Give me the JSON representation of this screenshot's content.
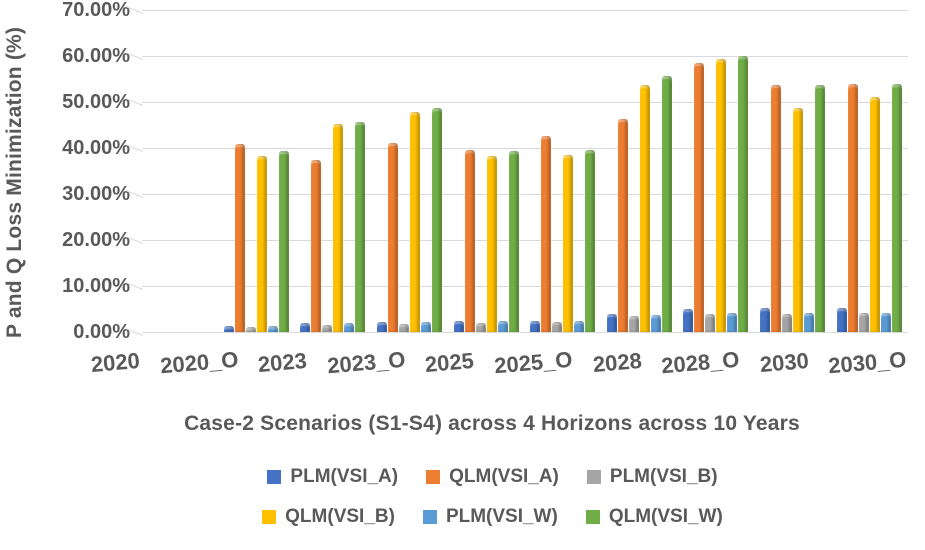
{
  "chart_data": {
    "type": "bar",
    "title": "",
    "xlabel": "Case-2 Scenarios (S1-S4) across 4 Horizons across 10 Years",
    "ylabel": "P and Q Loss Minimization (%)",
    "ylim": [
      0,
      70
    ],
    "grid": true,
    "legend_position": "bottom",
    "yticks": [
      "70.00%",
      "60.00%",
      "50.00%",
      "40.00%",
      "30.00%",
      "20.00%",
      "10.00%",
      "0.00%"
    ],
    "categories": [
      "2020",
      "2020_O",
      "2023",
      "2023_O",
      "2025",
      "2025_O",
      "2028",
      "2028_O",
      "2030",
      "2030_O"
    ],
    "series": [
      {
        "name": "PLM(VSI_A)",
        "color": "#4472C4",
        "values": [
          0,
          1.3,
          1.9,
          2.2,
          2.4,
          2.4,
          3.9,
          5.0,
          5.2,
          5.2
        ]
      },
      {
        "name": "QLM(VSI_A)",
        "color": "#ED7D31",
        "values": [
          0,
          40.9,
          37.3,
          41.0,
          39.5,
          42.7,
          46.4,
          58.5,
          53.8,
          54.0
        ]
      },
      {
        "name": "PLM(VSI_B)",
        "color": "#A5A5A5",
        "values": [
          0,
          1.0,
          1.5,
          1.8,
          2.0,
          2.1,
          3.4,
          4.0,
          4.0,
          4.1
        ]
      },
      {
        "name": "QLM(VSI_B)",
        "color": "#FFC000",
        "values": [
          0,
          38.3,
          45.2,
          47.8,
          38.2,
          38.5,
          53.8,
          59.4,
          48.8,
          51.0
        ]
      },
      {
        "name": "PLM(VSI_W)",
        "color": "#5B9BD5",
        "values": [
          0,
          1.3,
          1.9,
          2.1,
          2.3,
          2.3,
          3.6,
          4.1,
          4.2,
          4.2
        ]
      },
      {
        "name": "QLM(VSI_W)",
        "color": "#70AD47",
        "values": [
          0,
          39.4,
          45.7,
          48.8,
          39.3,
          39.5,
          55.6,
          60.0,
          53.8,
          54.0
        ]
      }
    ],
    "legend_rows": [
      [
        0,
        1,
        2
      ],
      [
        3,
        4,
        5
      ]
    ],
    "colors": {
      "text": "#595959",
      "gridline": "#D9D9D9"
    }
  }
}
